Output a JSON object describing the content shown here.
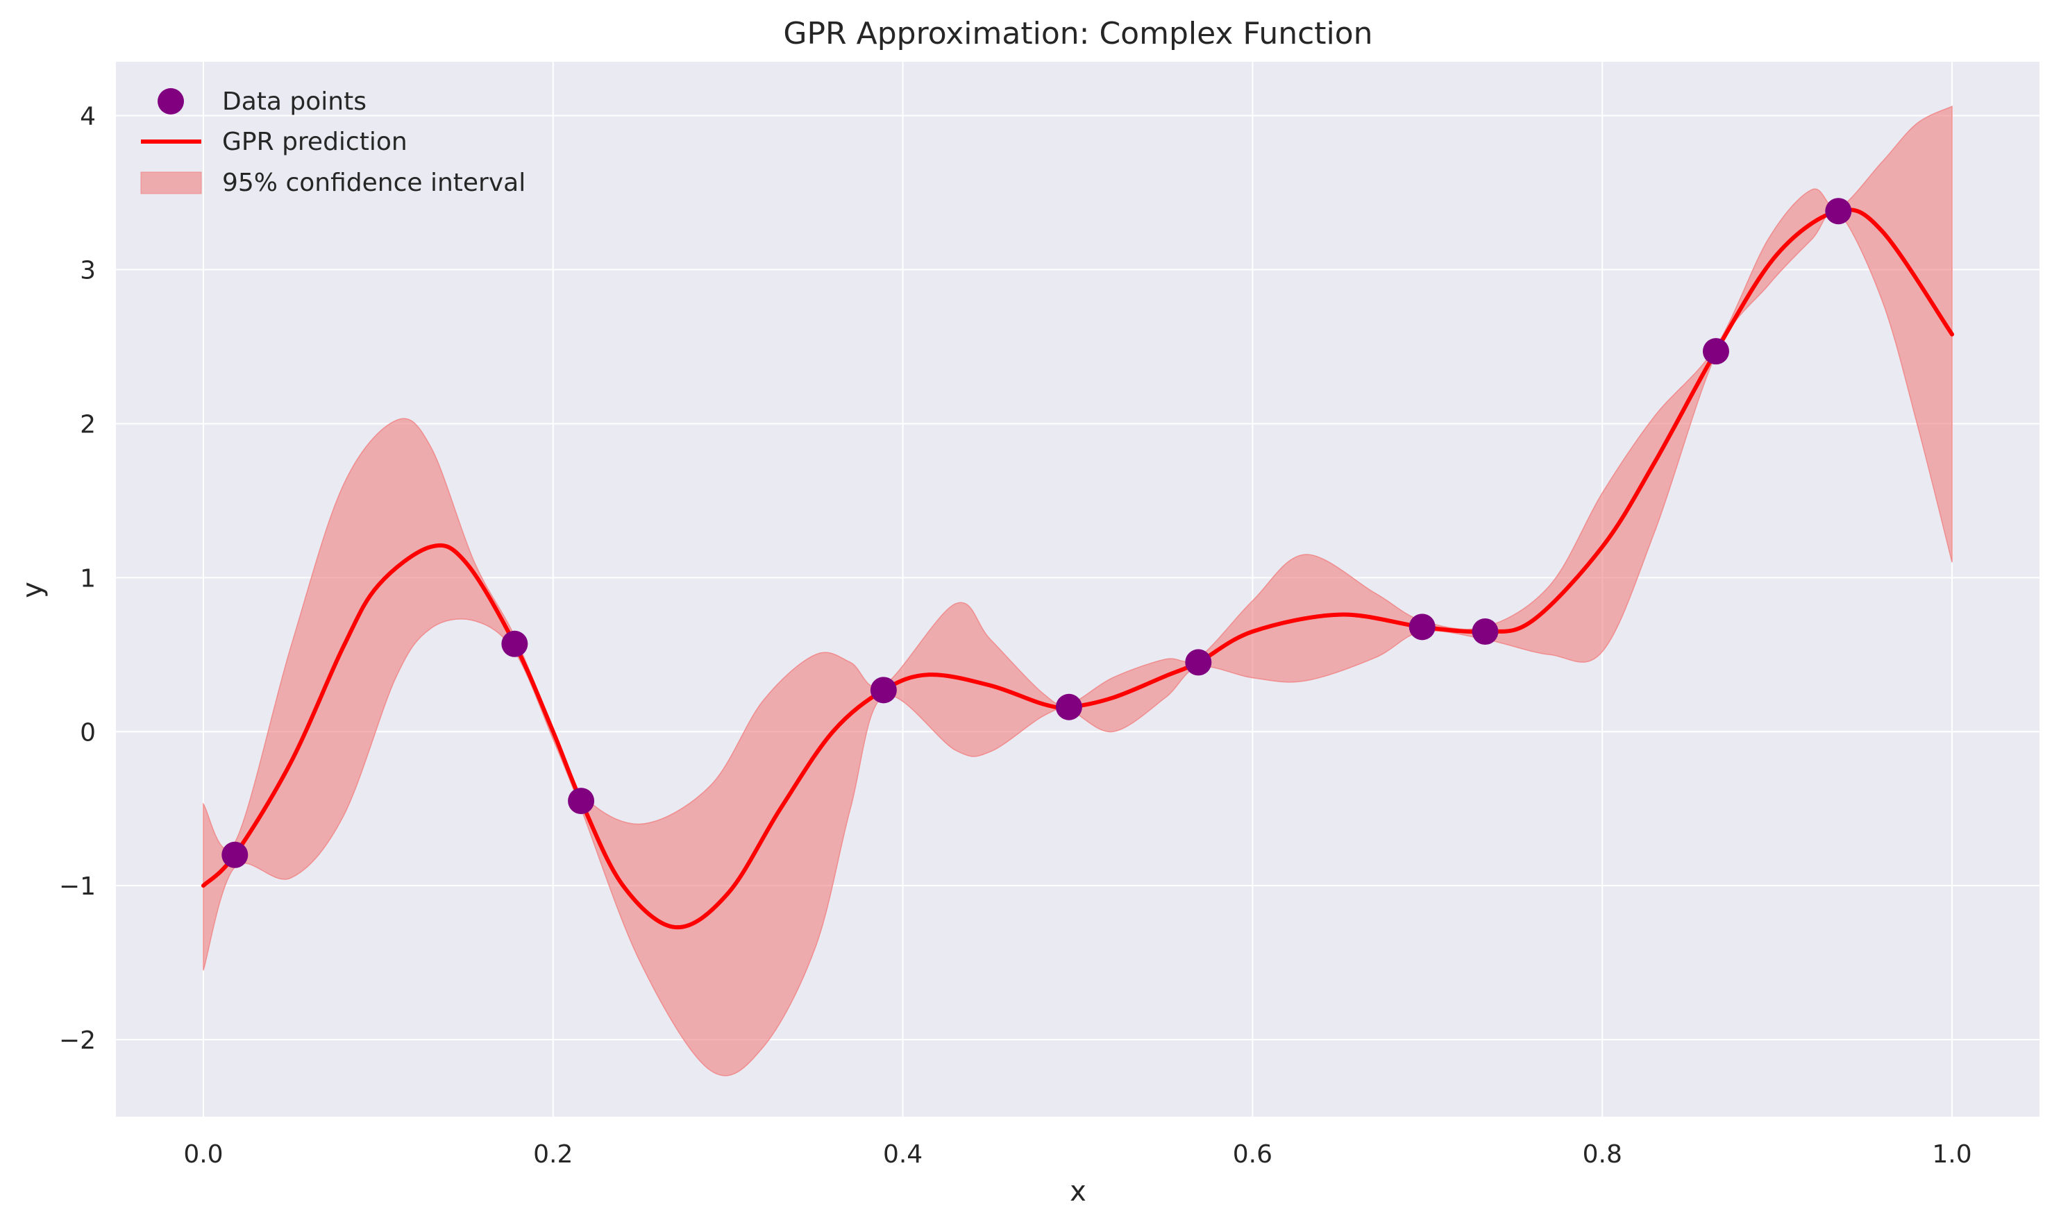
{
  "chart_data": {
    "type": "line",
    "title": "GPR Approximation: Complex Function",
    "xlabel": "x",
    "ylabel": "y",
    "xlim": [
      -0.05,
      1.05
    ],
    "ylim": [
      -2.5,
      4.35
    ],
    "x_ticks": [
      0.0,
      0.2,
      0.4,
      0.6,
      0.8,
      1.0
    ],
    "x_tick_labels": [
      "0.0",
      "0.2",
      "0.4",
      "0.6",
      "0.8",
      "1.0"
    ],
    "y_ticks": [
      -2,
      -1,
      0,
      1,
      2,
      3,
      4
    ],
    "y_tick_labels": [
      "−2",
      "−1",
      "0",
      "1",
      "2",
      "3",
      "4"
    ],
    "grid": true,
    "legend_position": "upper-left",
    "legend": [
      {
        "label": "Data points",
        "kind": "marker"
      },
      {
        "label": "GPR prediction",
        "kind": "line"
      },
      {
        "label": "95% confidence interval",
        "kind": "band"
      }
    ],
    "colors": {
      "background": "#eaeaf2",
      "grid": "#ffffff",
      "points": "#800080",
      "prediction": "#ff0000",
      "band": "#f08080"
    },
    "data_points": {
      "name": "Data points",
      "x": [
        0.018,
        0.178,
        0.216,
        0.389,
        0.495,
        0.569,
        0.697,
        0.733,
        0.865,
        0.935
      ],
      "y": [
        -0.8,
        0.57,
        -0.45,
        0.27,
        0.16,
        0.45,
        0.68,
        0.65,
        2.47,
        3.38
      ]
    },
    "prediction": {
      "name": "GPR prediction",
      "x": [
        0.0,
        0.018,
        0.05,
        0.08,
        0.1,
        0.13,
        0.15,
        0.178,
        0.2,
        0.216,
        0.24,
        0.27,
        0.3,
        0.33,
        0.36,
        0.389,
        0.415,
        0.45,
        0.48,
        0.495,
        0.52,
        0.55,
        0.569,
        0.6,
        0.65,
        0.697,
        0.733,
        0.76,
        0.8,
        0.83,
        0.865,
        0.9,
        0.935,
        0.96,
        1.0
      ],
      "y": [
        -1.0,
        -0.8,
        -0.2,
        0.55,
        0.95,
        1.2,
        1.1,
        0.57,
        0.0,
        -0.45,
        -1.0,
        -1.27,
        -1.05,
        -0.5,
        0.0,
        0.27,
        0.37,
        0.3,
        0.18,
        0.16,
        0.22,
        0.36,
        0.45,
        0.65,
        0.76,
        0.68,
        0.65,
        0.72,
        1.2,
        1.75,
        2.47,
        3.1,
        3.38,
        3.25,
        2.58
      ]
    },
    "confidence_interval": {
      "name": "95% confidence interval",
      "x": [
        0.0,
        0.018,
        0.05,
        0.08,
        0.11,
        0.13,
        0.155,
        0.178,
        0.2,
        0.216,
        0.25,
        0.29,
        0.32,
        0.35,
        0.37,
        0.389,
        0.43,
        0.45,
        0.48,
        0.495,
        0.52,
        0.55,
        0.569,
        0.6,
        0.63,
        0.67,
        0.697,
        0.733,
        0.77,
        0.8,
        0.83,
        0.865,
        0.895,
        0.92,
        0.935,
        0.96,
        0.98,
        1.0
      ],
      "upper": [
        -0.47,
        -0.72,
        0.55,
        1.6,
        2.02,
        1.85,
        1.1,
        0.62,
        0.02,
        -0.4,
        -0.6,
        -0.35,
        0.2,
        0.5,
        0.45,
        0.3,
        0.83,
        0.6,
        0.25,
        0.18,
        0.35,
        0.47,
        0.48,
        0.85,
        1.15,
        0.9,
        0.72,
        0.68,
        0.95,
        1.55,
        2.05,
        2.5,
        3.2,
        3.52,
        3.4,
        3.7,
        3.95,
        4.06
      ],
      "lower": [
        -1.55,
        -0.88,
        -0.95,
        -0.55,
        0.35,
        0.67,
        0.72,
        0.52,
        -0.05,
        -0.5,
        -1.5,
        -2.2,
        -2.05,
        -1.4,
        -0.5,
        0.23,
        -0.12,
        -0.13,
        0.1,
        0.14,
        0.0,
        0.22,
        0.42,
        0.35,
        0.33,
        0.48,
        0.65,
        0.6,
        0.5,
        0.52,
        1.3,
        2.45,
        2.9,
        3.2,
        3.37,
        2.8,
        2.0,
        1.1
      ]
    }
  }
}
